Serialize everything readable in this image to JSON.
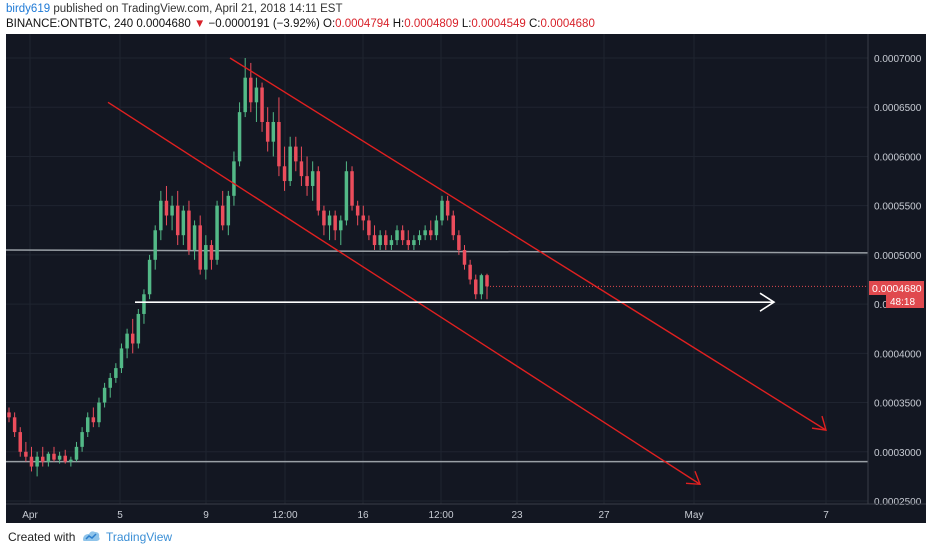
{
  "header": {
    "author": "birdy619",
    "published": "published on TradingView.com, April 21, 2018 14:11 EST",
    "symbol": "BINANCE:ONTBTC, 240",
    "last": "0.0004680",
    "change_arrow": "▼",
    "change": "−0.0000191 (−3.92%)",
    "open_label": "O:",
    "open": "0.0004794",
    "high_label": "H:",
    "high": "0.0004809",
    "low_label": "L:",
    "low": "0.0004549",
    "close_label": "C:",
    "close": "0.0004680"
  },
  "footer": {
    "created": "Created with",
    "brand": "TradingView"
  },
  "colors": {
    "background": "#131722",
    "up": "#53b987",
    "down": "#eb4d5c",
    "channel": "#e02020",
    "support": "#ffffff",
    "horizontal": "#9aa0a6",
    "price_label": "#e0494e"
  },
  "chart_data": {
    "type": "candlestick",
    "ylim": [
      0.00025,
      0.00071
    ],
    "x_ticks": [
      "Apr",
      "5",
      "9",
      "12:00",
      "16",
      "12:00",
      "23",
      "27",
      "May",
      "7"
    ],
    "y_ticks": [
      "0.0007000",
      "0.0006500",
      "0.0006000",
      "0.0005500",
      "0.0005000",
      "0.0004500",
      "0.0004000",
      "0.0003500",
      "0.0003000",
      "0.0002500"
    ],
    "current_price_label": "0.0004680",
    "countdown_label": "48:18",
    "horizontal_levels": [
      0.0005,
      0.00029
    ],
    "support_arrow": {
      "from_tick_fraction": 0.15,
      "to_tick_fraction": 0.91,
      "price": 0.000452
    },
    "channel_lines": [
      {
        "from": [
          0.26,
          0.0007
        ],
        "to": [
          0.9,
          0.000322
        ]
      },
      {
        "from": [
          0.12,
          0.000655
        ],
        "to": [
          0.79,
          0.000267
        ]
      }
    ],
    "candles": [
      {
        "o": 0.00034,
        "h": 0.000345,
        "l": 0.00033,
        "c": 0.000335
      },
      {
        "o": 0.000335,
        "h": 0.00034,
        "l": 0.000315,
        "c": 0.00032
      },
      {
        "o": 0.00032,
        "h": 0.000325,
        "l": 0.000295,
        "c": 0.0003
      },
      {
        "o": 0.0003,
        "h": 0.00031,
        "l": 0.00029,
        "c": 0.000295
      },
      {
        "o": 0.000295,
        "h": 0.000305,
        "l": 0.00028,
        "c": 0.000285
      },
      {
        "o": 0.000285,
        "h": 0.0003,
        "l": 0.000275,
        "c": 0.000295
      },
      {
        "o": 0.000295,
        "h": 0.000305,
        "l": 0.000285,
        "c": 0.00029
      },
      {
        "o": 0.00029,
        "h": 0.0003,
        "l": 0.000285,
        "c": 0.000298
      },
      {
        "o": 0.000298,
        "h": 0.000305,
        "l": 0.00029,
        "c": 0.000292
      },
      {
        "o": 0.000292,
        "h": 0.0003,
        "l": 0.000288,
        "c": 0.000296
      },
      {
        "o": 0.000296,
        "h": 0.000302,
        "l": 0.000288,
        "c": 0.00029
      },
      {
        "o": 0.00029,
        "h": 0.000295,
        "l": 0.000285,
        "c": 0.000292
      },
      {
        "o": 0.000292,
        "h": 0.00031,
        "l": 0.00029,
        "c": 0.000305
      },
      {
        "o": 0.000305,
        "h": 0.000325,
        "l": 0.0003,
        "c": 0.00032
      },
      {
        "o": 0.00032,
        "h": 0.00034,
        "l": 0.000315,
        "c": 0.000335
      },
      {
        "o": 0.000335,
        "h": 0.000345,
        "l": 0.000325,
        "c": 0.00033
      },
      {
        "o": 0.00033,
        "h": 0.000355,
        "l": 0.000325,
        "c": 0.00035
      },
      {
        "o": 0.00035,
        "h": 0.00037,
        "l": 0.000345,
        "c": 0.000365
      },
      {
        "o": 0.000365,
        "h": 0.00038,
        "l": 0.000355,
        "c": 0.000375
      },
      {
        "o": 0.000375,
        "h": 0.00039,
        "l": 0.00037,
        "c": 0.000385
      },
      {
        "o": 0.000385,
        "h": 0.00041,
        "l": 0.00038,
        "c": 0.000405
      },
      {
        "o": 0.000405,
        "h": 0.000425,
        "l": 0.000395,
        "c": 0.00042
      },
      {
        "o": 0.00042,
        "h": 0.000435,
        "l": 0.0004,
        "c": 0.00041
      },
      {
        "o": 0.00041,
        "h": 0.000445,
        "l": 0.000405,
        "c": 0.00044
      },
      {
        "o": 0.00044,
        "h": 0.000465,
        "l": 0.00043,
        "c": 0.00046
      },
      {
        "o": 0.00046,
        "h": 0.0005,
        "l": 0.000455,
        "c": 0.000495
      },
      {
        "o": 0.000495,
        "h": 0.00053,
        "l": 0.000485,
        "c": 0.000525
      },
      {
        "o": 0.000525,
        "h": 0.000565,
        "l": 0.000515,
        "c": 0.000555
      },
      {
        "o": 0.000555,
        "h": 0.00057,
        "l": 0.00053,
        "c": 0.00054
      },
      {
        "o": 0.00054,
        "h": 0.00056,
        "l": 0.000525,
        "c": 0.00055
      },
      {
        "o": 0.00055,
        "h": 0.000565,
        "l": 0.00051,
        "c": 0.00052
      },
      {
        "o": 0.00052,
        "h": 0.00055,
        "l": 0.00051,
        "c": 0.000545
      },
      {
        "o": 0.000545,
        "h": 0.000555,
        "l": 0.0005,
        "c": 0.000505
      },
      {
        "o": 0.000505,
        "h": 0.000535,
        "l": 0.000495,
        "c": 0.00053
      },
      {
        "o": 0.00053,
        "h": 0.00054,
        "l": 0.00048,
        "c": 0.000485
      },
      {
        "o": 0.000485,
        "h": 0.00052,
        "l": 0.000475,
        "c": 0.00051
      },
      {
        "o": 0.00051,
        "h": 0.000515,
        "l": 0.000485,
        "c": 0.000495
      },
      {
        "o": 0.000495,
        "h": 0.000555,
        "l": 0.00049,
        "c": 0.00055
      },
      {
        "o": 0.00055,
        "h": 0.000565,
        "l": 0.000525,
        "c": 0.00053
      },
      {
        "o": 0.00053,
        "h": 0.000565,
        "l": 0.00052,
        "c": 0.00056
      },
      {
        "o": 0.00056,
        "h": 0.000605,
        "l": 0.00055,
        "c": 0.000595
      },
      {
        "o": 0.000595,
        "h": 0.000655,
        "l": 0.00059,
        "c": 0.000645
      },
      {
        "o": 0.000645,
        "h": 0.0007,
        "l": 0.00064,
        "c": 0.00068
      },
      {
        "o": 0.00068,
        "h": 0.000695,
        "l": 0.000645,
        "c": 0.000655
      },
      {
        "o": 0.000655,
        "h": 0.00068,
        "l": 0.000635,
        "c": 0.00067
      },
      {
        "o": 0.00067,
        "h": 0.000675,
        "l": 0.000625,
        "c": 0.000635
      },
      {
        "o": 0.000635,
        "h": 0.00065,
        "l": 0.000605,
        "c": 0.000615
      },
      {
        "o": 0.000615,
        "h": 0.000645,
        "l": 0.0006,
        "c": 0.000635
      },
      {
        "o": 0.000635,
        "h": 0.00066,
        "l": 0.00058,
        "c": 0.00059
      },
      {
        "o": 0.00059,
        "h": 0.00061,
        "l": 0.000565,
        "c": 0.000575
      },
      {
        "o": 0.000575,
        "h": 0.00062,
        "l": 0.00057,
        "c": 0.00061
      },
      {
        "o": 0.00061,
        "h": 0.00062,
        "l": 0.000585,
        "c": 0.000595
      },
      {
        "o": 0.000595,
        "h": 0.00061,
        "l": 0.00057,
        "c": 0.00058
      },
      {
        "o": 0.00058,
        "h": 0.0006,
        "l": 0.00056,
        "c": 0.00057
      },
      {
        "o": 0.00057,
        "h": 0.000595,
        "l": 0.000555,
        "c": 0.000585
      },
      {
        "o": 0.000585,
        "h": 0.00059,
        "l": 0.00054,
        "c": 0.000545
      },
      {
        "o": 0.000545,
        "h": 0.00055,
        "l": 0.00052,
        "c": 0.00053
      },
      {
        "o": 0.00053,
        "h": 0.000545,
        "l": 0.000515,
        "c": 0.00054
      },
      {
        "o": 0.00054,
        "h": 0.000545,
        "l": 0.000515,
        "c": 0.000525
      },
      {
        "o": 0.000525,
        "h": 0.00054,
        "l": 0.00051,
        "c": 0.000535
      },
      {
        "o": 0.000535,
        "h": 0.000595,
        "l": 0.00053,
        "c": 0.000585
      },
      {
        "o": 0.000585,
        "h": 0.00059,
        "l": 0.000545,
        "c": 0.00055
      },
      {
        "o": 0.00055,
        "h": 0.000555,
        "l": 0.00053,
        "c": 0.00054
      },
      {
        "o": 0.00054,
        "h": 0.00055,
        "l": 0.000525,
        "c": 0.000535
      },
      {
        "o": 0.000535,
        "h": 0.00054,
        "l": 0.000515,
        "c": 0.00052
      },
      {
        "o": 0.00052,
        "h": 0.00053,
        "l": 0.000505,
        "c": 0.00051
      },
      {
        "o": 0.00051,
        "h": 0.000525,
        "l": 0.000505,
        "c": 0.00052
      },
      {
        "o": 0.00052,
        "h": 0.000525,
        "l": 0.000505,
        "c": 0.00051
      },
      {
        "o": 0.00051,
        "h": 0.00052,
        "l": 0.000505,
        "c": 0.000515
      },
      {
        "o": 0.000515,
        "h": 0.00053,
        "l": 0.00051,
        "c": 0.000525
      },
      {
        "o": 0.000525,
        "h": 0.00053,
        "l": 0.00051,
        "c": 0.000515
      },
      {
        "o": 0.000515,
        "h": 0.000525,
        "l": 0.000505,
        "c": 0.00051
      },
      {
        "o": 0.00051,
        "h": 0.00052,
        "l": 0.000505,
        "c": 0.000515
      },
      {
        "o": 0.000515,
        "h": 0.000525,
        "l": 0.00051,
        "c": 0.00052
      },
      {
        "o": 0.00052,
        "h": 0.00053,
        "l": 0.000515,
        "c": 0.000525
      },
      {
        "o": 0.000525,
        "h": 0.000535,
        "l": 0.000515,
        "c": 0.00052
      },
      {
        "o": 0.00052,
        "h": 0.00054,
        "l": 0.000515,
        "c": 0.000535
      },
      {
        "o": 0.000535,
        "h": 0.00056,
        "l": 0.00053,
        "c": 0.000555
      },
      {
        "o": 0.000555,
        "h": 0.00056,
        "l": 0.000535,
        "c": 0.00054
      },
      {
        "o": 0.00054,
        "h": 0.000545,
        "l": 0.000515,
        "c": 0.00052
      },
      {
        "o": 0.00052,
        "h": 0.000525,
        "l": 0.0005,
        "c": 0.000505
      },
      {
        "o": 0.000505,
        "h": 0.00051,
        "l": 0.000485,
        "c": 0.00049
      },
      {
        "o": 0.00049,
        "h": 0.000495,
        "l": 0.00047,
        "c": 0.000475
      },
      {
        "o": 0.000475,
        "h": 0.00048,
        "l": 0.000455,
        "c": 0.00046
      },
      {
        "o": 0.00046,
        "h": 0.0004809,
        "l": 0.0004549,
        "c": 0.0004794
      },
      {
        "o": 0.0004794,
        "h": 0.0004809,
        "l": 0.0004549,
        "c": 0.000468
      }
    ]
  }
}
